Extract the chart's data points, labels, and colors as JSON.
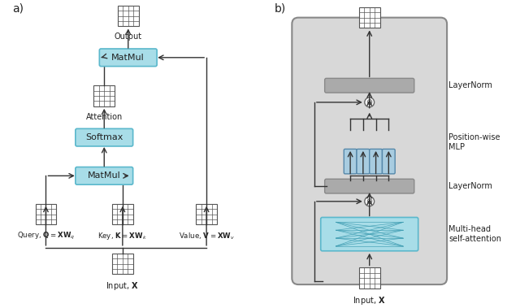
{
  "fig_width": 6.4,
  "fig_height": 3.79,
  "bg_color": "#ffffff",
  "grid_color": "#555555",
  "rounded_box_blue_fill": "#a8dde8",
  "rounded_box_blue_border": "#5bb8cc",
  "transformer_fill": "#d8d8d8",
  "transformer_border": "#888888",
  "mlp_box_fill": "#a8cce0",
  "mlp_box_border": "#5588aa",
  "attn_box_fill": "#a8dde8",
  "attn_box_border": "#5bb8cc",
  "arrow_color": "#333333",
  "text_color": "#222222",
  "label_a": "a)",
  "label_b": "b)",
  "label_output": "Output",
  "label_attention": "Attention",
  "label_matmul": "MatMul",
  "label_softmax": "Softmax",
  "label_query": "Query, $\\mathbf{Q} = \\mathbf{X}\\mathbf{W}_q$",
  "label_key": "Key, $\\mathbf{K} = \\mathbf{X}\\mathbf{W}_k$",
  "label_value": "Value, $\\mathbf{V} = \\mathbf{X}\\mathbf{W}_v$",
  "label_input_a": "Input, $\\mathbf{X}$",
  "label_input_b": "Input, $\\mathbf{X}$",
  "label_layernorm_top": "LayerNorm",
  "label_layernorm_mid": "LayerNorm",
  "label_posmlp": "Position-wise\nMLP",
  "label_multihead": "Multi-head\nself-attention"
}
